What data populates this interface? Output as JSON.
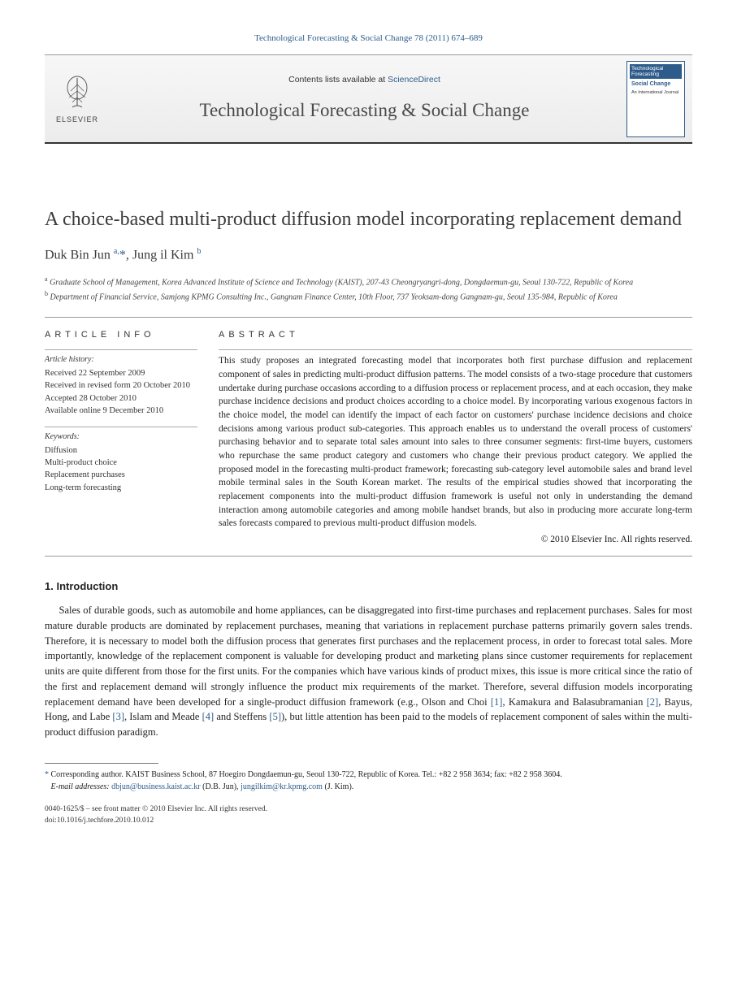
{
  "citation": "Technological Forecasting & Social Change 78 (2011) 674–689",
  "masthead": {
    "publisher_label": "ELSEVIER",
    "contents_prefix": "Contents lists available at ",
    "contents_link": "ScienceDirect",
    "journal_name": "Technological Forecasting & Social Change",
    "cover": {
      "line1": "Technological Forecasting",
      "line2": "Social Change",
      "sub": "An International Journal"
    }
  },
  "paper": {
    "title": "A choice-based multi-product diffusion model incorporating replacement demand",
    "authors_html": "Duk Bin Jun <sup>a,</sup><span class='star'>*</span>, Jung il Kim <sup>b</sup>",
    "affiliations": {
      "a": "Graduate School of Management, Korea Advanced Institute of Science and Technology (KAIST), 207-43 Cheongryangri-dong, Dongdaemun-gu, Seoul 130-722, Republic of Korea",
      "b": "Department of Financial Service, Samjong KPMG Consulting Inc., Gangnam Finance Center, 10th Floor, 737 Yeoksam-dong Gangnam-gu, Seoul 135-984, Republic of Korea"
    }
  },
  "article_info": {
    "heading": "ARTICLE INFO",
    "history_label": "Article history:",
    "history": [
      "Received 22 September 2009",
      "Received in revised form 20 October 2010",
      "Accepted 28 October 2010",
      "Available online 9 December 2010"
    ],
    "keywords_label": "Keywords:",
    "keywords": [
      "Diffusion",
      "Multi-product choice",
      "Replacement purchases",
      "Long-term forecasting"
    ]
  },
  "abstract": {
    "heading": "ABSTRACT",
    "text": "This study proposes an integrated forecasting model that incorporates both first purchase diffusion and replacement component of sales in predicting multi-product diffusion patterns. The model consists of a two-stage procedure that customers undertake during purchase occasions according to a diffusion process or replacement process, and at each occasion, they make purchase incidence decisions and product choices according to a choice model. By incorporating various exogenous factors in the choice model, the model can identify the impact of each factor on customers' purchase incidence decisions and choice decisions among various product sub-categories. This approach enables us to understand the overall process of customers' purchasing behavior and to separate total sales amount into sales to three consumer segments: first-time buyers, customers who repurchase the same product category and customers who change their previous product category. We applied the proposed model in the forecasting multi-product framework; forecasting sub-category level automobile sales and brand level mobile terminal sales in the South Korean market. The results of the empirical studies showed that incorporating the replacement components into the multi-product diffusion framework is useful not only in understanding the demand interaction among automobile categories and among mobile handset brands, but also in producing more accurate long-term sales forecasts compared to previous multi-product diffusion models.",
    "copyright": "© 2010 Elsevier Inc. All rights reserved."
  },
  "section1": {
    "heading": "1. Introduction",
    "para": "Sales of durable goods, such as automobile and home appliances, can be disaggregated into first-time purchases and replacement purchases. Sales for most mature durable products are dominated by replacement purchases, meaning that variations in replacement purchase patterns primarily govern sales trends. Therefore, it is necessary to model both the diffusion process that generates first purchases and the replacement process, in order to forecast total sales. More importantly, knowledge of the replacement component is valuable for developing product and marketing plans since customer requirements for replacement units are quite different from those for the first units. For the companies which have various kinds of product mixes, this issue is more critical since the ratio of the first and replacement demand will strongly influence the product mix requirements of the market. Therefore, several diffusion models incorporating replacement demand have been developed for a single-product diffusion framework (e.g., Olson and Choi [1], Kamakura and Balasubramanian [2], Bayus, Hong, and Labe [3], Islam and Meade [4] and Steffens [5]), but little attention has been paid to the models of replacement component of sales within the multi-product diffusion paradigm.",
    "refs": [
      "[1]",
      "[2]",
      "[3]",
      "[4]",
      "[5]"
    ]
  },
  "footnote": {
    "corr": "Corresponding author. KAIST Business School, 87 Hoegiro Dongdaemun-gu, Seoul 130-722, Republic of Korea. Tel.: +82 2 958 3634; fax: +82 2 958 3604.",
    "email_label": "E-mail addresses:",
    "email1": "dbjun@business.kaist.ac.kr",
    "email1_who": "(D.B. Jun),",
    "email2": "jungilkim@kr.kpmg.com",
    "email2_who": "(J. Kim)."
  },
  "bottom": {
    "line1": "0040-1625/$ – see front matter © 2010 Elsevier Inc. All rights reserved.",
    "line2": "doi:10.1016/j.techfore.2010.10.012"
  },
  "colors": {
    "link": "#2e5c8a",
    "text": "#1a1a1a",
    "rule": "#999999"
  }
}
